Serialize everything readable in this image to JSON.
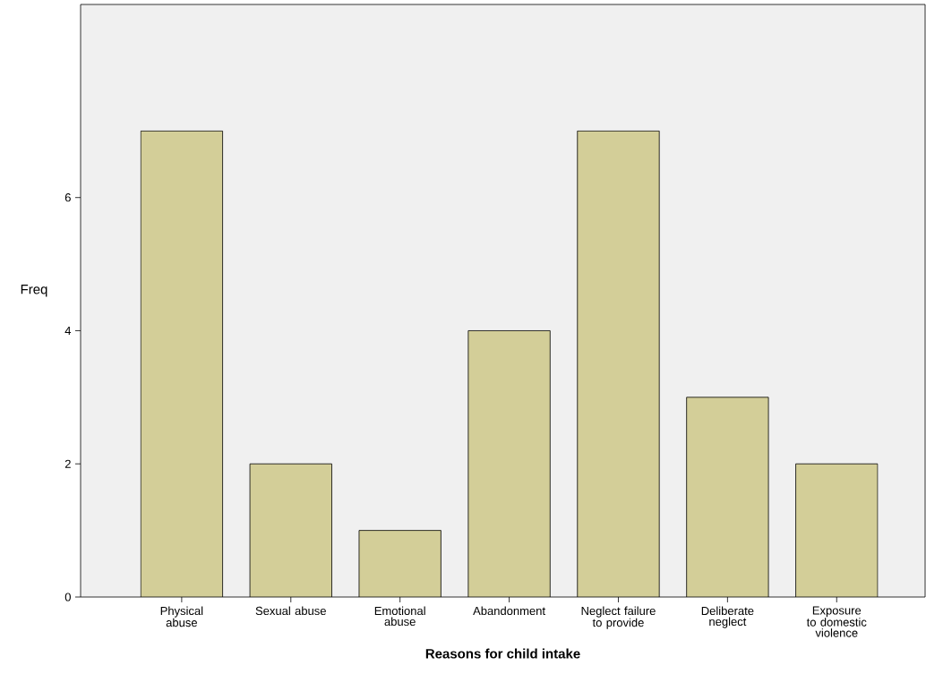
{
  "chart_data": {
    "type": "bar",
    "xlabel": "Reasons for child intake",
    "ylabel": "Freq",
    "categories": [
      "Physical abuse",
      "Sexual abuse",
      "Emotional abuse",
      "Abandonment",
      "Neglect failure to provide",
      "Deliberate neglect",
      "Exposure to domestic violence"
    ],
    "values": [
      7,
      2,
      1,
      4,
      7,
      3,
      2
    ],
    "color": "#d3ce98",
    "ylim": [
      0,
      8.9
    ],
    "yticks": [
      0,
      2,
      4,
      6
    ],
    "grid": false
  }
}
